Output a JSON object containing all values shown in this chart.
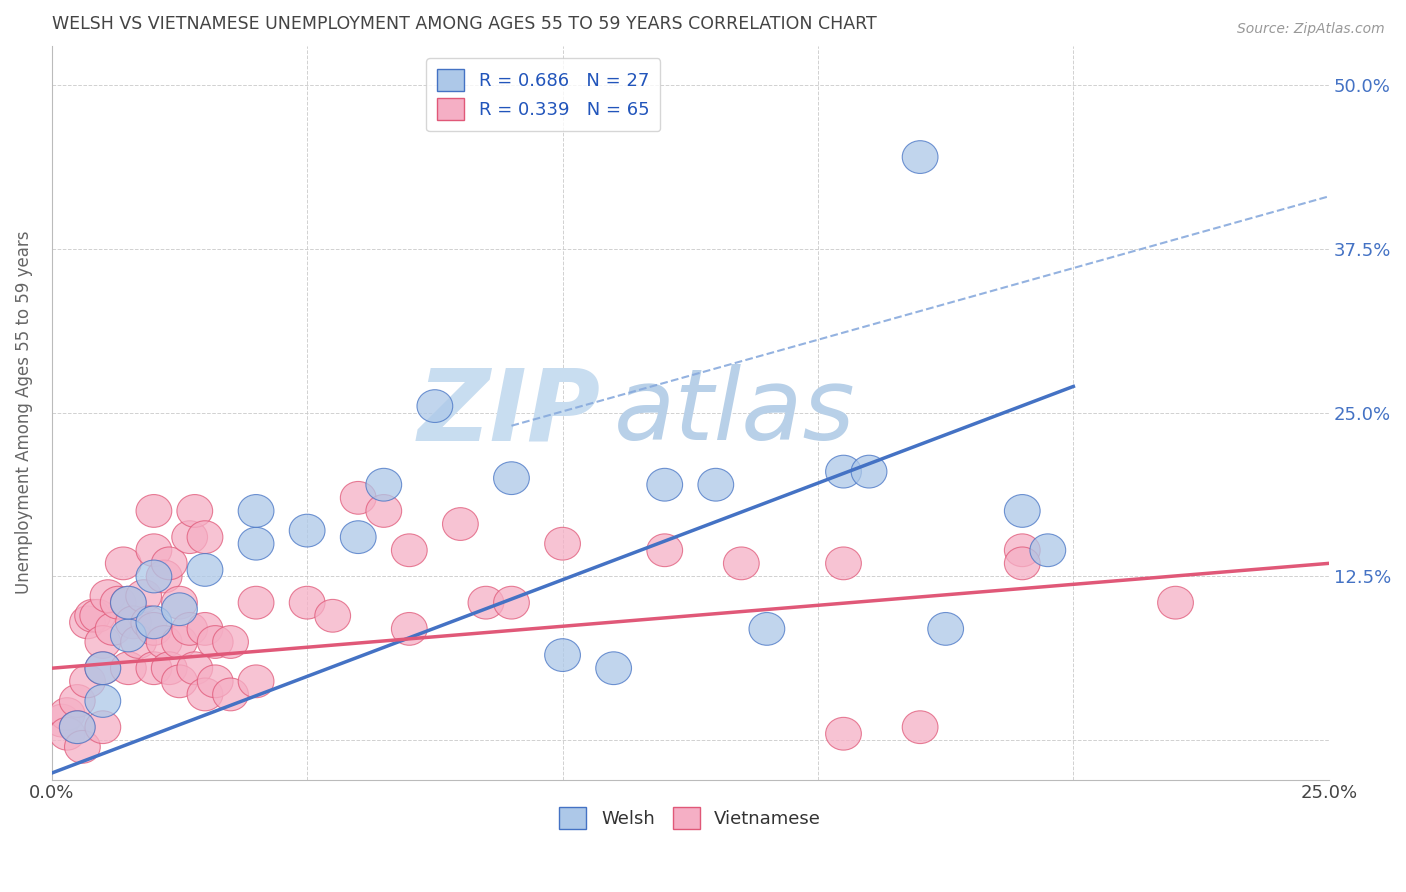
{
  "title": "WELSH VS VIETNAMESE UNEMPLOYMENT AMONG AGES 55 TO 59 YEARS CORRELATION CHART",
  "source": "Source: ZipAtlas.com",
  "ylabel": "Unemployment Among Ages 55 to 59 years",
  "xlim": [
    0.0,
    0.25
  ],
  "ylim": [
    -0.03,
    0.53
  ],
  "xticks": [
    0.0,
    0.05,
    0.1,
    0.15,
    0.2,
    0.25
  ],
  "xticklabels": [
    "0.0%",
    "",
    "",
    "",
    "",
    "25.0%"
  ],
  "yticks": [
    0.0,
    0.125,
    0.25,
    0.375,
    0.5
  ],
  "yticklabels": [
    "",
    "12.5%",
    "25.0%",
    "37.5%",
    "50.0%"
  ],
  "welsh_R": 0.686,
  "welsh_N": 27,
  "viet_R": 0.339,
  "viet_N": 65,
  "welsh_color": "#adc8e8",
  "welsh_line_color": "#4472c4",
  "viet_color": "#f5afc5",
  "viet_line_color": "#e05878",
  "welsh_line_x0": 0.0,
  "welsh_line_y0": -0.025,
  "welsh_line_x1": 0.2,
  "welsh_line_y1": 0.27,
  "viet_line_x0": 0.0,
  "viet_line_y0": 0.055,
  "viet_line_x1": 0.25,
  "viet_line_y1": 0.135,
  "dash_line_x0": 0.09,
  "dash_line_y0": 0.24,
  "dash_line_x1": 0.25,
  "dash_line_y1": 0.415,
  "dash_color": "#88aadd",
  "welsh_scatter": [
    [
      0.005,
      0.01
    ],
    [
      0.01,
      0.03
    ],
    [
      0.01,
      0.055
    ],
    [
      0.015,
      0.08
    ],
    [
      0.015,
      0.105
    ],
    [
      0.02,
      0.09
    ],
    [
      0.02,
      0.125
    ],
    [
      0.025,
      0.1
    ],
    [
      0.03,
      0.13
    ],
    [
      0.04,
      0.15
    ],
    [
      0.04,
      0.175
    ],
    [
      0.05,
      0.16
    ],
    [
      0.06,
      0.155
    ],
    [
      0.065,
      0.195
    ],
    [
      0.075,
      0.255
    ],
    [
      0.09,
      0.2
    ],
    [
      0.1,
      0.065
    ],
    [
      0.11,
      0.055
    ],
    [
      0.12,
      0.195
    ],
    [
      0.13,
      0.195
    ],
    [
      0.14,
      0.085
    ],
    [
      0.155,
      0.205
    ],
    [
      0.16,
      0.205
    ],
    [
      0.17,
      0.445
    ],
    [
      0.175,
      0.085
    ],
    [
      0.19,
      0.175
    ],
    [
      0.195,
      0.145
    ]
  ],
  "viet_scatter": [
    [
      0.002,
      0.015
    ],
    [
      0.003,
      0.02
    ],
    [
      0.003,
      0.005
    ],
    [
      0.005,
      0.03
    ],
    [
      0.005,
      0.01
    ],
    [
      0.006,
      -0.005
    ],
    [
      0.007,
      0.09
    ],
    [
      0.007,
      0.045
    ],
    [
      0.008,
      0.095
    ],
    [
      0.009,
      0.095
    ],
    [
      0.01,
      0.075
    ],
    [
      0.01,
      0.055
    ],
    [
      0.01,
      0.01
    ],
    [
      0.011,
      0.11
    ],
    [
      0.012,
      0.085
    ],
    [
      0.013,
      0.105
    ],
    [
      0.014,
      0.135
    ],
    [
      0.015,
      0.105
    ],
    [
      0.015,
      0.055
    ],
    [
      0.016,
      0.09
    ],
    [
      0.017,
      0.075
    ],
    [
      0.018,
      0.11
    ],
    [
      0.019,
      0.09
    ],
    [
      0.02,
      0.175
    ],
    [
      0.02,
      0.145
    ],
    [
      0.02,
      0.085
    ],
    [
      0.02,
      0.055
    ],
    [
      0.022,
      0.125
    ],
    [
      0.022,
      0.075
    ],
    [
      0.023,
      0.135
    ],
    [
      0.023,
      0.055
    ],
    [
      0.025,
      0.105
    ],
    [
      0.025,
      0.075
    ],
    [
      0.025,
      0.045
    ],
    [
      0.027,
      0.155
    ],
    [
      0.027,
      0.085
    ],
    [
      0.028,
      0.175
    ],
    [
      0.028,
      0.055
    ],
    [
      0.03,
      0.155
    ],
    [
      0.03,
      0.085
    ],
    [
      0.03,
      0.035
    ],
    [
      0.032,
      0.075
    ],
    [
      0.032,
      0.045
    ],
    [
      0.035,
      0.075
    ],
    [
      0.035,
      0.035
    ],
    [
      0.04,
      0.105
    ],
    [
      0.04,
      0.045
    ],
    [
      0.05,
      0.105
    ],
    [
      0.055,
      0.095
    ],
    [
      0.06,
      0.185
    ],
    [
      0.065,
      0.175
    ],
    [
      0.07,
      0.145
    ],
    [
      0.07,
      0.085
    ],
    [
      0.08,
      0.165
    ],
    [
      0.085,
      0.105
    ],
    [
      0.09,
      0.105
    ],
    [
      0.1,
      0.15
    ],
    [
      0.12,
      0.145
    ],
    [
      0.135,
      0.135
    ],
    [
      0.155,
      0.135
    ],
    [
      0.155,
      0.005
    ],
    [
      0.17,
      0.01
    ],
    [
      0.19,
      0.145
    ],
    [
      0.19,
      0.135
    ],
    [
      0.22,
      0.105
    ]
  ],
  "background_color": "#ffffff",
  "grid_color": "#cccccc",
  "title_color": "#444444",
  "axis_label_color": "#666666",
  "tick_label_color_right": "#4472c4",
  "watermark_color": "#dce8f5",
  "legend_facecolor": "#ffffff"
}
